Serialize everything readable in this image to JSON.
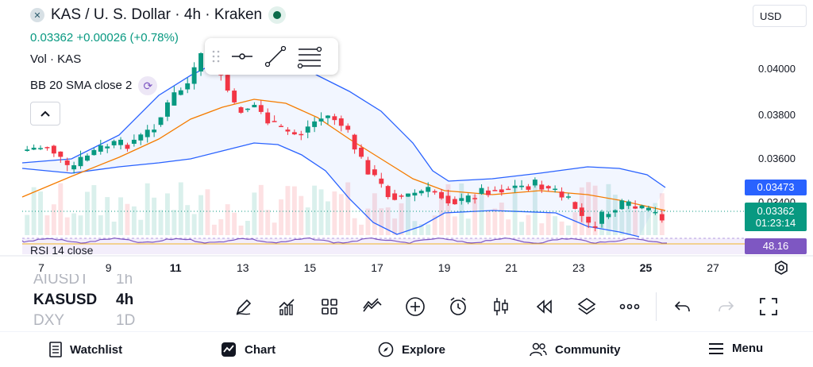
{
  "header": {
    "symbol_title": "KAS / U. S. Dollar · 4h · Kraken",
    "price": "0.03362",
    "change": "+0.00026 (+0.78%)",
    "volume_label": "Vol · KAS",
    "bb_label": "BB 20 SMA close 2",
    "rsi_label": "RSI 14 close"
  },
  "currency": "USD",
  "price_axis": [
    "0.04000",
    "0.03800",
    "0.03600",
    "0.03400"
  ],
  "price_labels": {
    "bb_upper": "0.03473",
    "last": "0.03362",
    "countdown": "01:23:14",
    "rsi": "48.16"
  },
  "x_axis": {
    "labels": [
      "7",
      "9",
      "11",
      "13",
      "15",
      "17",
      "19",
      "21",
      "23",
      "25",
      "27"
    ],
    "bold": [
      "11",
      "25"
    ]
  },
  "watchlist_peek": [
    "AIUSDT",
    "KASUSD",
    "DXY"
  ],
  "watchlist_peek_right": [
    "1h",
    "4h",
    "1D"
  ],
  "tools": [
    "pencil-icon",
    "indicators-icon",
    "layouts-icon",
    "draw-lines-icon",
    "add-icon",
    "alert-clock-icon",
    "candle-type-icon",
    "replay-icon",
    "layers-icon",
    "more-icon",
    "undo-icon",
    "redo-icon",
    "fullscreen-icon"
  ],
  "nav": {
    "watchlist": "Watchlist",
    "chart": "Chart",
    "explore": "Explore",
    "community": "Community",
    "menu": "Menu"
  },
  "colors": {
    "up": "#089981",
    "down": "#f23645",
    "bb_band": "#2962ff",
    "sma": "#f57c00",
    "rsi": "#7e57c2",
    "bb_label_bg": "#2962ff",
    "last_price_bg": "#089981"
  }
}
